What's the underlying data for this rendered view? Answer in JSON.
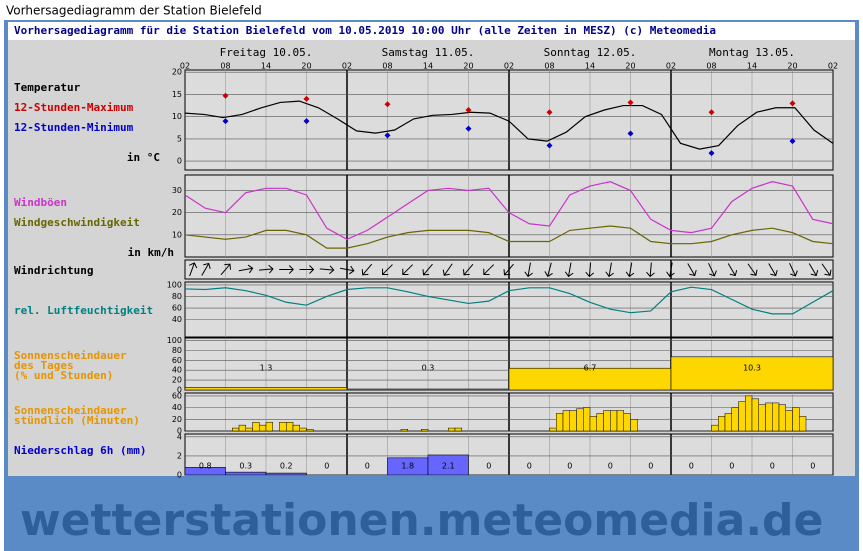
{
  "header": "Vorhersagediagramm der Station Bielefeld",
  "title": "Vorhersagediagramm für die Station Bielefeld vom 10.05.2019 10:00 Uhr (alle Zeiten in MESZ)   (c) Meteomedia",
  "days": [
    "Freitag 10.05.",
    "Samstag 11.05.",
    "Sonntag 12.05.",
    "Montag 13.05."
  ],
  "hours": [
    "02",
    "08",
    "14",
    "20",
    "02",
    "08",
    "14",
    "20",
    "02",
    "08",
    "14",
    "20",
    "02",
    "08",
    "14",
    "20",
    "02"
  ],
  "temperature": {
    "labels": [
      "Temperatur",
      "12-Stunden-Maximum",
      "12-Stunden-Minimum",
      "in °C"
    ],
    "ylim": [
      -2,
      20.5
    ],
    "yticks": [
      0,
      5,
      10,
      15,
      20
    ],
    "line_color": "#000000",
    "max_color": "#cc0000",
    "min_color": "#0000cc",
    "values": [
      10.8,
      10.5,
      9.8,
      10.5,
      12,
      13.2,
      13.5,
      12,
      9.5,
      6.8,
      6.3,
      7,
      9.5,
      10.3,
      10.5,
      11,
      10.8,
      9,
      5,
      4.5,
      6.5,
      10,
      11.5,
      12.5,
      12.5,
      10.5,
      4,
      2.7,
      3.5,
      8,
      11,
      12,
      12,
      7,
      4
    ],
    "max": [
      14.7,
      14,
      12.8,
      11.5,
      11,
      13.2,
      11,
      13
    ],
    "min": [
      9,
      9,
      5.8,
      7.3,
      3.5,
      6.2,
      1.8,
      4.5
    ]
  },
  "wind": {
    "labels": [
      "Windböen",
      "Windgeschwindigkeit",
      "in km/h"
    ],
    "ylim": [
      0,
      37
    ],
    "yticks": [
      10,
      20,
      30
    ],
    "gust_color": "#cc33cc",
    "speed_color": "#666600",
    "gusts": [
      28,
      22,
      20,
      29,
      31,
      31,
      28,
      13,
      8,
      12,
      18,
      24,
      30,
      31,
      30,
      31,
      20,
      15,
      14,
      28,
      32,
      34,
      30,
      17,
      12,
      11,
      13,
      25,
      31,
      34,
      32,
      17,
      15
    ],
    "speed": [
      10,
      9,
      8,
      9,
      12,
      12,
      10,
      4,
      4,
      6,
      9,
      11,
      12,
      12,
      12,
      11,
      7,
      7,
      7,
      12,
      13,
      14,
      13,
      7,
      6,
      6,
      7,
      10,
      12,
      13,
      11,
      7,
      6
    ]
  },
  "direction": {
    "label": "Windrichtung",
    "degrees": [
      200,
      210,
      220,
      260,
      265,
      270,
      270,
      275,
      280,
      40,
      45,
      45,
      40,
      35,
      40,
      45,
      40,
      10,
      15,
      10,
      5,
      10,
      10,
      5,
      10,
      330,
      335,
      330,
      325,
      330,
      335,
      330,
      325
    ]
  },
  "humidity": {
    "label": "rel. Luftfeuchtigkeit",
    "color": "#008080",
    "ylim": [
      10,
      105
    ],
    "yticks": [
      40,
      60,
      80,
      100
    ],
    "values": [
      93,
      92,
      95,
      90,
      82,
      70,
      65,
      80,
      92,
      95,
      95,
      88,
      80,
      74,
      68,
      72,
      90,
      95,
      95,
      85,
      70,
      58,
      52,
      55,
      88,
      96,
      92,
      75,
      58,
      50,
      50,
      70,
      90
    ]
  },
  "sun_daily": {
    "labels": [
      "Sonnenscheindauer",
      "des Tages",
      "(% und Stunden)"
    ],
    "ylim": [
      0,
      105
    ],
    "yticks": [
      0,
      20,
      40,
      60,
      80,
      100
    ],
    "color": "#ffd700",
    "percent": [
      5,
      2,
      44,
      67
    ],
    "hours": [
      1.3,
      0.3,
      6.7,
      10.3
    ]
  },
  "sun_hourly": {
    "labels": [
      "Sonnenscheindauer",
      "stündlich (Minuten)"
    ],
    "ylim": [
      0,
      65
    ],
    "yticks": [
      0,
      20,
      40,
      60
    ],
    "color": "#ffd700",
    "values": [
      0,
      0,
      0,
      0,
      0,
      0,
      0,
      5,
      10,
      5,
      15,
      10,
      15,
      0,
      15,
      15,
      10,
      5,
      3,
      0,
      0,
      0,
      0,
      0,
      0,
      0,
      0,
      0,
      0,
      0,
      0,
      0,
      3,
      0,
      0,
      3,
      0,
      0,
      0,
      5,
      5,
      0,
      0,
      0,
      0,
      0,
      0,
      0,
      0,
      0,
      0,
      0,
      0,
      0,
      5,
      30,
      35,
      35,
      38,
      40,
      25,
      30,
      35,
      35,
      35,
      30,
      20,
      0,
      0,
      0,
      0,
      0,
      0,
      0,
      0,
      0,
      0,
      0,
      10,
      25,
      30,
      40,
      50,
      60,
      55,
      45,
      48,
      48,
      45,
      35,
      40,
      25,
      0,
      0,
      0,
      0
    ]
  },
  "precip": {
    "label": "Niederschlag 6h (mm)",
    "color": "#6666ff",
    "ylim": [
      0,
      4.3
    ],
    "yticks": [
      0,
      2,
      4
    ],
    "values": [
      0.8,
      0.3,
      0.2,
      0,
      0,
      1.8,
      2.1,
      0,
      0,
      0,
      0,
      0,
      0,
      0,
      0,
      0
    ]
  },
  "footer": "wetterstationen.meteomedia.de"
}
